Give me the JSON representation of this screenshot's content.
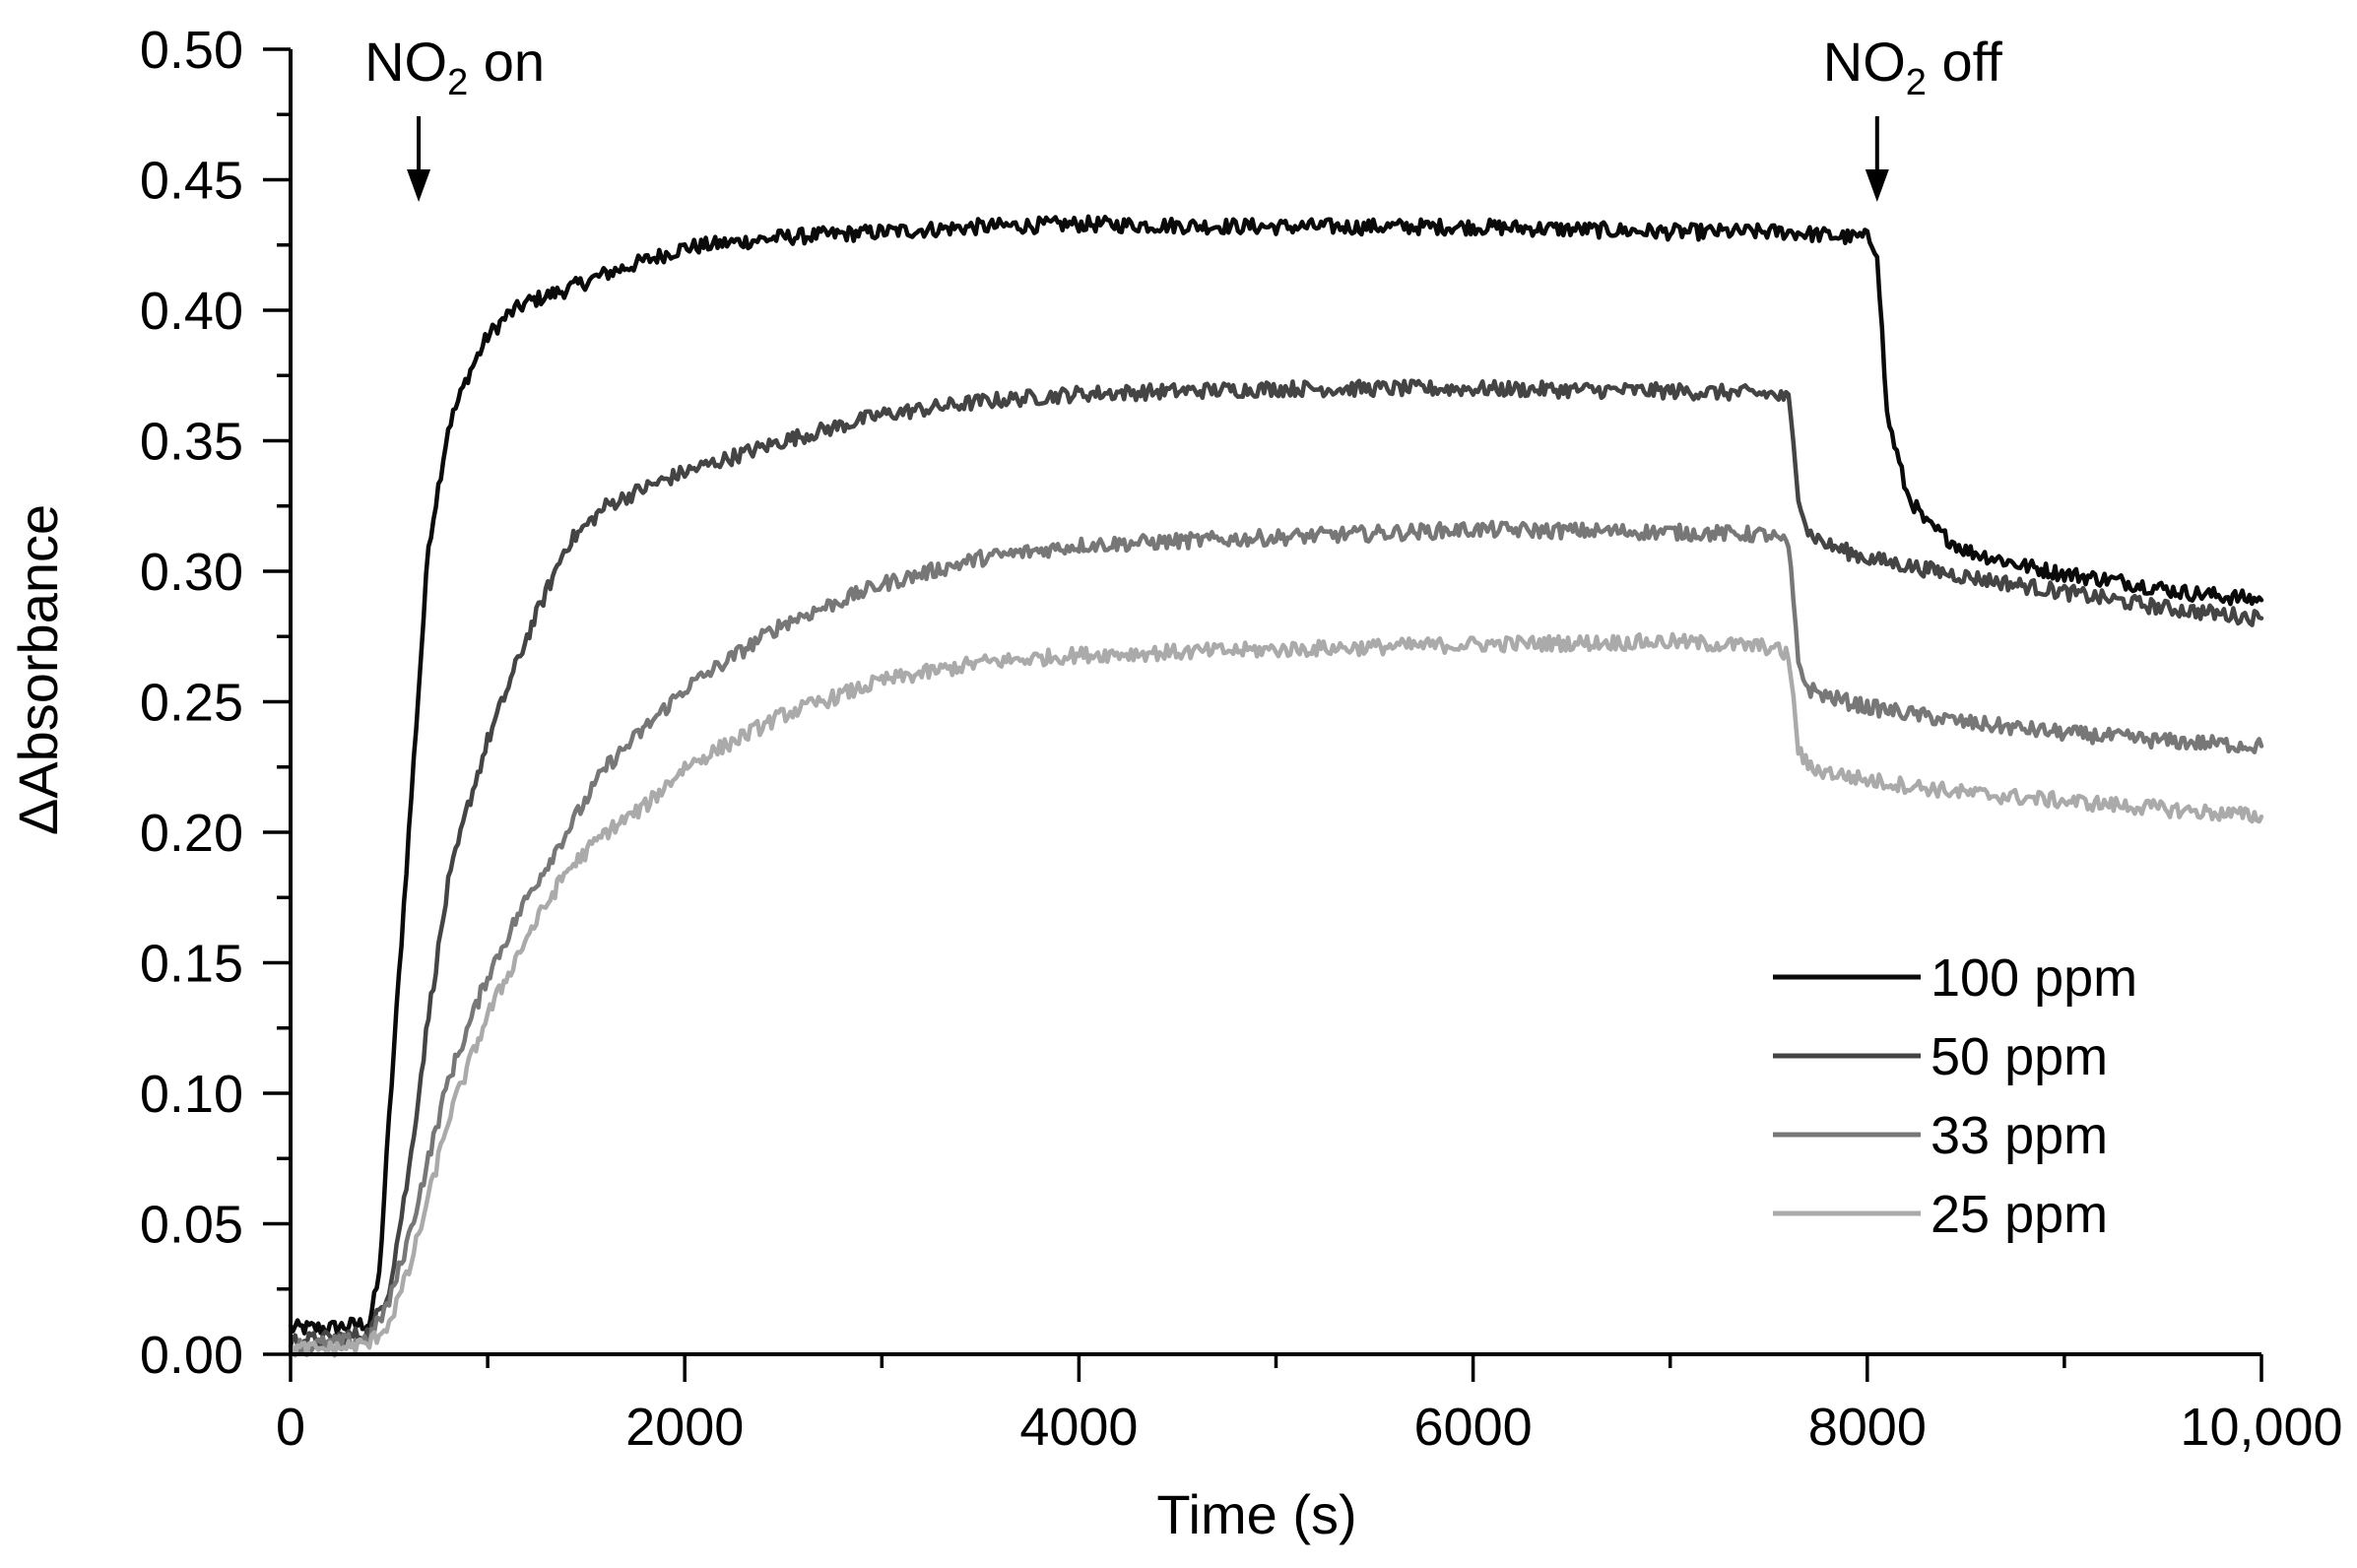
{
  "chart_data": {
    "type": "line",
    "xlabel": "Time (s)",
    "ylabel": "ΔAbsorbance",
    "xlim": [
      0,
      10000
    ],
    "ylim": [
      0,
      0.5
    ],
    "x_ticks": [
      0,
      2000,
      4000,
      6000,
      8000,
      10000
    ],
    "x_tick_labels": [
      "0",
      "2000",
      "4000",
      "6000",
      "8000",
      "10,000"
    ],
    "x_minor_ticks": [
      1000,
      3000,
      5000,
      7000,
      9000
    ],
    "y_ticks": [
      0,
      0.05,
      0.1,
      0.15,
      0.2,
      0.25,
      0.3,
      0.35,
      0.4,
      0.45,
      0.5
    ],
    "y_tick_labels": [
      "0.00",
      "0.05",
      "0.10",
      "0.15",
      "0.20",
      "0.25",
      "0.30",
      "0.35",
      "0.40",
      "0.45",
      "0.50"
    ],
    "grid": false,
    "legend_position": "bottom-right",
    "annotations": [
      {
        "base": "NO",
        "sub": "2",
        "rest": " on",
        "x": 650
      },
      {
        "base": "NO",
        "sub": "2",
        "rest": " off",
        "x": 8050
      }
    ],
    "series": [
      {
        "name": "100 ppm",
        "color": "#0a0a0a",
        "x": [
          0,
          200,
          400,
          450,
          500,
          600,
          700,
          800,
          900,
          1000,
          1100,
          1200,
          1400,
          1600,
          1800,
          2000,
          2500,
          3000,
          3500,
          4000,
          5000,
          6000,
          7000,
          7600,
          7900,
          8000,
          8050,
          8100,
          8200,
          8300,
          8500,
          8800,
          9000,
          9300,
          9600,
          10000
        ],
        "y": [
          0.01,
          0.01,
          0.012,
          0.03,
          0.09,
          0.2,
          0.31,
          0.355,
          0.375,
          0.39,
          0.398,
          0.403,
          0.408,
          0.414,
          0.419,
          0.424,
          0.428,
          0.43,
          0.432,
          0.433,
          0.432,
          0.432,
          0.43,
          0.43,
          0.428,
          0.428,
          0.423,
          0.36,
          0.33,
          0.318,
          0.308,
          0.302,
          0.299,
          0.296,
          0.292,
          0.289
        ]
      },
      {
        "name": "50 ppm",
        "color": "#444444",
        "x": [
          0,
          200,
          400,
          500,
          600,
          700,
          800,
          900,
          1000,
          1200,
          1400,
          1600,
          1800,
          2000,
          2500,
          3000,
          3500,
          4000,
          5000,
          6000,
          7000,
          7500,
          7600,
          7650,
          7700,
          7800,
          8000,
          8500,
          9000,
          9500,
          10000
        ],
        "y": [
          0.005,
          0.006,
          0.008,
          0.025,
          0.07,
          0.13,
          0.18,
          0.21,
          0.235,
          0.275,
          0.31,
          0.325,
          0.332,
          0.338,
          0.35,
          0.36,
          0.365,
          0.368,
          0.37,
          0.37,
          0.369,
          0.368,
          0.366,
          0.33,
          0.315,
          0.31,
          0.305,
          0.298,
          0.292,
          0.286,
          0.282
        ]
      },
      {
        "name": "33 ppm",
        "color": "#777777",
        "x": [
          0,
          200,
          400,
          500,
          600,
          700,
          800,
          1000,
          1200,
          1400,
          1600,
          1800,
          2000,
          2500,
          3000,
          3500,
          4000,
          5000,
          6000,
          7000,
          7500,
          7600,
          7650,
          7700,
          7800,
          8000,
          8500,
          9000,
          9500,
          10000
        ],
        "y": [
          0.003,
          0.004,
          0.006,
          0.02,
          0.045,
          0.075,
          0.105,
          0.145,
          0.175,
          0.2,
          0.225,
          0.24,
          0.255,
          0.28,
          0.295,
          0.305,
          0.31,
          0.313,
          0.316,
          0.315,
          0.314,
          0.31,
          0.265,
          0.255,
          0.252,
          0.248,
          0.242,
          0.238,
          0.235,
          0.233
        ]
      },
      {
        "name": "25 ppm",
        "color": "#aaaaaa",
        "x": [
          0,
          200,
          400,
          500,
          600,
          700,
          800,
          1000,
          1200,
          1400,
          1600,
          1800,
          2000,
          2500,
          3000,
          3500,
          4000,
          5000,
          6000,
          7000,
          7500,
          7600,
          7650,
          7700,
          7800,
          8000,
          8500,
          9000,
          9500,
          10000
        ],
        "y": [
          0.002,
          0.002,
          0.004,
          0.012,
          0.032,
          0.06,
          0.09,
          0.13,
          0.16,
          0.185,
          0.2,
          0.21,
          0.225,
          0.245,
          0.258,
          0.265,
          0.268,
          0.27,
          0.272,
          0.273,
          0.271,
          0.268,
          0.232,
          0.225,
          0.223,
          0.22,
          0.215,
          0.212,
          0.209,
          0.206
        ]
      }
    ]
  }
}
